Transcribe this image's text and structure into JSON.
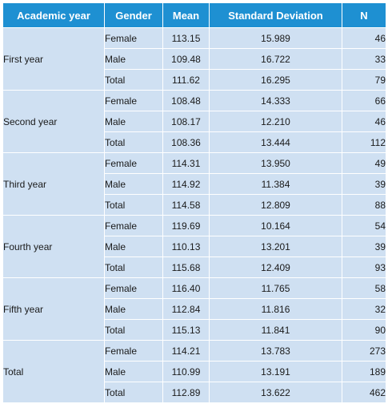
{
  "columns": [
    "Academic year",
    "Gender",
    "Mean",
    "Standard Deviation",
    "N"
  ],
  "groups": [
    {
      "year": "First year",
      "rows": [
        {
          "gender": "Female",
          "mean": "113.15",
          "sd": "15.989",
          "n": "46"
        },
        {
          "gender": "Male",
          "mean": "109.48",
          "sd": "16.722",
          "n": "33"
        },
        {
          "gender": "Total",
          "mean": "111.62",
          "sd": "16.295",
          "n": "79"
        }
      ]
    },
    {
      "year": "Second year",
      "rows": [
        {
          "gender": "Female",
          "mean": "108.48",
          "sd": "14.333",
          "n": "66"
        },
        {
          "gender": "Male",
          "mean": "108.17",
          "sd": "12.210",
          "n": "46"
        },
        {
          "gender": "Total",
          "mean": "108.36",
          "sd": "13.444",
          "n": "112"
        }
      ]
    },
    {
      "year": "Third year",
      "rows": [
        {
          "gender": "Female",
          "mean": "114.31",
          "sd": "13.950",
          "n": "49"
        },
        {
          "gender": "Male",
          "mean": "114.92",
          "sd": "11.384",
          "n": "39"
        },
        {
          "gender": "Total",
          "mean": "114.58",
          "sd": "12.809",
          "n": "88"
        }
      ]
    },
    {
      "year": "Fourth year",
      "rows": [
        {
          "gender": "Female",
          "mean": "119.69",
          "sd": "10.164",
          "n": "54"
        },
        {
          "gender": "Male",
          "mean": "110.13",
          "sd": "13.201",
          "n": "39"
        },
        {
          "gender": "Total",
          "mean": "115.68",
          "sd": "12.409",
          "n": "93"
        }
      ]
    },
    {
      "year": "Fifth year",
      "rows": [
        {
          "gender": "Female",
          "mean": "116.40",
          "sd": "11.765",
          "n": "58"
        },
        {
          "gender": "Male",
          "mean": "112.84",
          "sd": "11.816",
          "n": "32"
        },
        {
          "gender": "Total",
          "mean": "115.13",
          "sd": "11.841",
          "n": "90"
        }
      ]
    },
    {
      "year": "Total",
      "rows": [
        {
          "gender": "Female",
          "mean": "114.21",
          "sd": "13.783",
          "n": "273"
        },
        {
          "gender": "Male",
          "mean": "110.99",
          "sd": "13.191",
          "n": "189"
        },
        {
          "gender": "Total",
          "mean": "112.89",
          "sd": "13.622",
          "n": "462"
        }
      ]
    }
  ],
  "colors": {
    "header_bg": "#1e90d2",
    "header_text": "#ffffff",
    "cell_bg": "#cfe0f2",
    "grid_line": "#ffffff"
  }
}
